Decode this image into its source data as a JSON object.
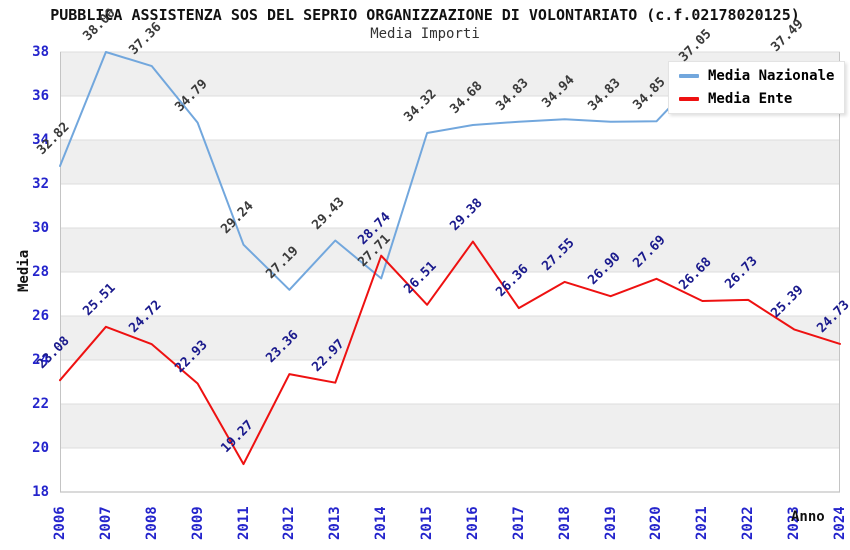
{
  "chart_data": {
    "type": "line",
    "title": "PUBBLICA ASSISTENZA SOS DEL SEPRIO ORGANIZZAZIONE DI VOLONTARIATO (c.f.02178020125)",
    "subtitle": "Media Importi",
    "xlabel": "Anno",
    "ylabel": "Media",
    "ylim": [
      18,
      38
    ],
    "ytick_step": 2,
    "grid": "horizontal-lines-with-alternating-gray-bands",
    "legend_position": "top-right-inside-plot",
    "categories": [
      "2006",
      "2007",
      "2008",
      "2009",
      "2011",
      "2012",
      "2013",
      "2014",
      "2015",
      "2016",
      "2017",
      "2018",
      "2019",
      "2020",
      "2021",
      "2022",
      "2023",
      "2024"
    ],
    "series": [
      {
        "name": "Media Nazionale",
        "color": "#72a7dd",
        "label_color": "#3a3a3a",
        "values": [
          32.82,
          38.0,
          37.36,
          34.79,
          29.24,
          27.19,
          29.43,
          27.71,
          34.32,
          34.68,
          34.83,
          34.94,
          34.83,
          34.85,
          37.05,
          null,
          37.49,
          null
        ]
      },
      {
        "name": "Media Ente",
        "color": "#ee1111",
        "label_color": "#19198c",
        "values": [
          23.08,
          25.51,
          24.72,
          22.93,
          19.27,
          23.36,
          22.97,
          28.74,
          26.51,
          29.38,
          26.36,
          27.55,
          26.9,
          27.69,
          26.68,
          26.73,
          25.39,
          24.73
        ]
      }
    ],
    "colors": {
      "axis_tick_labels": "#2424cc",
      "band_fill": "#efefef",
      "gridline": "#dcdcdc",
      "plot_border": "#c4c4c4"
    }
  }
}
